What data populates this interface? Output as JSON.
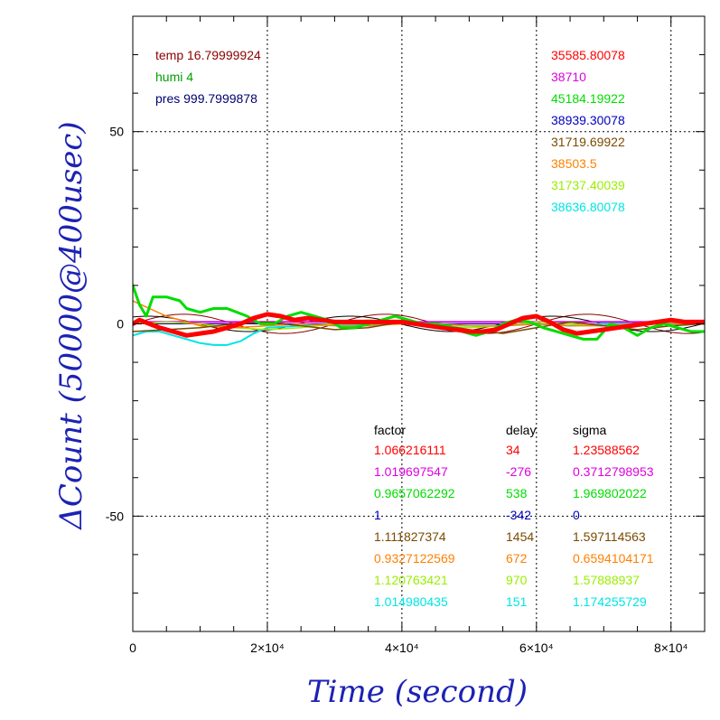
{
  "chart_data": {
    "type": "line",
    "xlabel": "Time (second)",
    "ylabel": "ΔCount (50000@400usec)",
    "xlim": [
      0,
      85000
    ],
    "ylim": [
      -80,
      80
    ],
    "grid": true,
    "x_ticks": [
      {
        "value": 0,
        "label": "0"
      },
      {
        "value": 20000,
        "label": "2×10⁴"
      },
      {
        "value": 40000,
        "label": "4×10⁴"
      },
      {
        "value": 60000,
        "label": "6×10⁴"
      },
      {
        "value": 80000,
        "label": "8×10⁴"
      }
    ],
    "y_ticks": [
      {
        "value": 50,
        "label": "50"
      },
      {
        "value": 0,
        "label": "0"
      },
      {
        "value": -50,
        "label": "-50"
      }
    ],
    "conditions": [
      {
        "text": "temp 16.79999924",
        "color": "#8b0000"
      },
      {
        "text": "humi 4",
        "color": "#00a000"
      },
      {
        "text": "pres 999.7999878",
        "color": "#000070"
      }
    ],
    "table_headers": [
      "factor",
      "delay",
      "sigma"
    ],
    "series": [
      {
        "color": "#ff0000",
        "width": 5,
        "mean_label": "35585.80078",
        "factor": "1.066216111",
        "delay": "34",
        "sigma": "1.23588562",
        "x": [
          0,
          1000,
          2500,
          4000,
          6000,
          8000,
          10000,
          12000,
          14000,
          16000,
          18000,
          20000,
          22000,
          24000,
          26000,
          28000,
          30000,
          32000,
          34000,
          36000,
          38000,
          40000,
          42000,
          44000,
          46000,
          48000,
          50000,
          52000,
          54000,
          56000,
          58000,
          60000,
          62000,
          64000,
          66000,
          68000,
          70000,
          72000,
          74000,
          76000,
          78000,
          80000,
          82000,
          85000
        ],
        "y": [
          0,
          1,
          0,
          -1,
          -2,
          -3,
          -2.5,
          -2,
          -1,
          0,
          1.5,
          2.5,
          2,
          1,
          1.5,
          1,
          0.5,
          0.5,
          0.5,
          0.5,
          0.5,
          0.5,
          0,
          -0.5,
          -1,
          -1.5,
          -2,
          -2,
          -1.5,
          0,
          1.5,
          2,
          0.5,
          -1.5,
          -2.5,
          -2,
          -1.5,
          -1,
          -0.5,
          0,
          0.5,
          1,
          0.5,
          0.5
        ]
      },
      {
        "color": "#dd00dd",
        "width": 2,
        "mean_label": "38710",
        "factor": "1.019697547",
        "delay": "-276",
        "sigma": "0.3712798953",
        "x": [
          0,
          10000,
          20000,
          30000,
          40000,
          50000,
          60000,
          70000,
          85000
        ],
        "y": [
          0.5,
          0.5,
          0.5,
          0.5,
          0.5,
          0.5,
          0.5,
          0.5,
          0.5
        ]
      },
      {
        "color": "#00dd00",
        "width": 3,
        "mean_label": "45184.19922",
        "factor": "0.9657062292",
        "delay": "538",
        "sigma": "1.969802022",
        "x": [
          0,
          1000,
          2000,
          3000,
          5000,
          7000,
          8000,
          10000,
          12000,
          14000,
          15500,
          17000,
          19000,
          21000,
          23000,
          25000,
          27000,
          29000,
          31000,
          33000,
          35000,
          37000,
          39000,
          41000,
          43000,
          45000,
          47000,
          49000,
          51000,
          53000,
          55000,
          57000,
          59000,
          61000,
          63000,
          65000,
          67000,
          69000,
          71000,
          73000,
          75000,
          77000,
          79000,
          81000,
          83000,
          85000
        ],
        "y": [
          10,
          5,
          2,
          7,
          7,
          6,
          4,
          3,
          4,
          4,
          3,
          2,
          0,
          0,
          2,
          3,
          2,
          1,
          -1,
          -1,
          0,
          1,
          2,
          1,
          0,
          0,
          -0.5,
          -2,
          -3,
          -2,
          0,
          1,
          0.5,
          -1,
          -2,
          -3,
          -4,
          -4,
          0,
          -1,
          -3,
          -1,
          0,
          -1,
          -2,
          -2
        ]
      },
      {
        "color": "#0000c0",
        "width": 1,
        "mean_label": "38939.30078",
        "factor": "1",
        "delay": "-342",
        "sigma": "0",
        "x": [
          0,
          85000
        ],
        "y": [
          0,
          0
        ]
      },
      {
        "color": "#7a4a00",
        "width": 1.5,
        "mean_label": "31719.69922",
        "factor": "1.111827374",
        "delay": "1454",
        "sigma": "1.597114563",
        "x": [
          0,
          5000,
          10000,
          15000,
          20000,
          25000,
          30000,
          35000,
          40000,
          45000,
          50000,
          55000,
          60000,
          65000,
          70000,
          75000,
          80000,
          85000
        ],
        "y": [
          -2,
          -1.5,
          -1,
          0,
          0.5,
          -0.5,
          -1.5,
          -1,
          0.5,
          0,
          -1.5,
          -2.5,
          -1,
          0.5,
          -0.5,
          -1.5,
          -0.5,
          0
        ]
      },
      {
        "color": "#ff8000",
        "width": 1.5,
        "mean_label": "38503.5",
        "factor": "0.9327122569",
        "delay": "672",
        "sigma": "0.6594104171",
        "x": [
          0,
          5000,
          10000,
          15000,
          20000,
          25000,
          30000,
          35000,
          40000,
          45000,
          50000,
          55000,
          60000,
          65000,
          70000,
          75000,
          80000,
          85000
        ],
        "y": [
          6,
          2,
          -0.5,
          -1,
          -0.5,
          0,
          -0.5,
          -0.5,
          0,
          0,
          -0.5,
          -0.5,
          0,
          -0.5,
          -0.5,
          0,
          0,
          0
        ]
      },
      {
        "color": "#99ee00",
        "width": 1.5,
        "mean_label": "31737.40039",
        "factor": "1.120763421",
        "delay": "970",
        "sigma": "1.57888937",
        "x": [
          0,
          5000,
          10000,
          15000,
          20000,
          25000,
          30000,
          35000,
          40000,
          45000,
          50000,
          55000,
          60000,
          65000,
          70000,
          75000,
          80000,
          85000
        ],
        "y": [
          0,
          0.5,
          0,
          -1,
          -1.5,
          -1,
          0,
          1,
          0.5,
          -0.5,
          -1,
          -0.5,
          0.5,
          0,
          -0.5,
          0,
          0.5,
          0.5
        ]
      },
      {
        "color": "#00e5e5",
        "width": 2,
        "mean_label": "38636.80078",
        "factor": "1.014980435",
        "delay": "151",
        "sigma": "1.174255729",
        "x": [
          0,
          2000,
          4000,
          6000,
          8000,
          10000,
          12000,
          14000,
          16000,
          18000,
          20000,
          25000,
          30000,
          35000,
          40000,
          45000,
          50000,
          55000,
          60000,
          65000,
          70000,
          75000,
          80000,
          85000
        ],
        "y": [
          -3,
          -2,
          -2,
          -3,
          -4,
          -5,
          -5.5,
          -5.5,
          -4.5,
          -2.5,
          -1,
          -0.5,
          0,
          -0.5,
          0.5,
          0,
          -0.5,
          -0.5,
          0,
          -0.5,
          0,
          0,
          0,
          0
        ]
      }
    ],
    "model_curves": [
      {
        "color": "#8b0000",
        "amp": 2.5,
        "period": 30000,
        "phase": 0
      },
      {
        "color": "#000000",
        "amp": 2.0,
        "period": 30000,
        "phase": 1.1
      }
    ]
  }
}
